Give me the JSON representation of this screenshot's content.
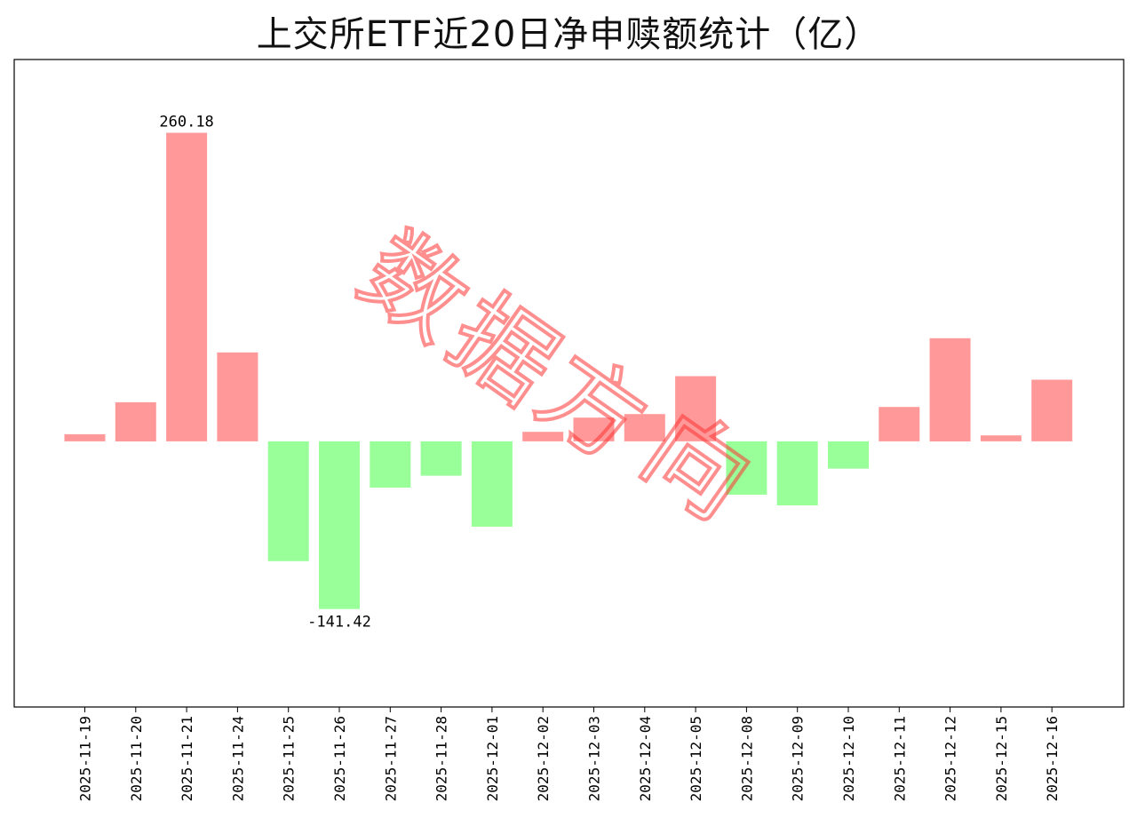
{
  "page": {
    "title": "上交所ETF近20日净申赎额统计（亿）",
    "watermark": "数据方向"
  },
  "colors": {
    "positive": "#ff9999",
    "negative": "#99ff99",
    "watermark": "#ff3333",
    "axis": "#000000"
  },
  "chart_data": {
    "type": "bar",
    "title": "上交所ETF近20日净申赎额统计（亿）",
    "xlabel": "",
    "ylabel": "",
    "grid": false,
    "legend": "none",
    "ylim": [
      -224,
      322
    ],
    "categories": [
      "2025-11-19",
      "2025-11-20",
      "2025-11-21",
      "2025-11-24",
      "2025-11-25",
      "2025-11-26",
      "2025-11-27",
      "2025-11-28",
      "2025-12-01",
      "2025-12-02",
      "2025-12-03",
      "2025-12-04",
      "2025-12-05",
      "2025-12-08",
      "2025-12-09",
      "2025-12-10",
      "2025-12-11",
      "2025-12-12",
      "2025-12-15",
      "2025-12-16"
    ],
    "values": [
      6,
      33,
      260.18,
      75,
      -101,
      -141.42,
      -39,
      -29,
      -72,
      8,
      20,
      23,
      55,
      -45,
      -54,
      -23,
      29,
      87,
      5,
      52
    ],
    "data_labels": [
      {
        "index": 2,
        "text": "260.18"
      },
      {
        "index": 5,
        "text": "-141.42"
      }
    ]
  }
}
